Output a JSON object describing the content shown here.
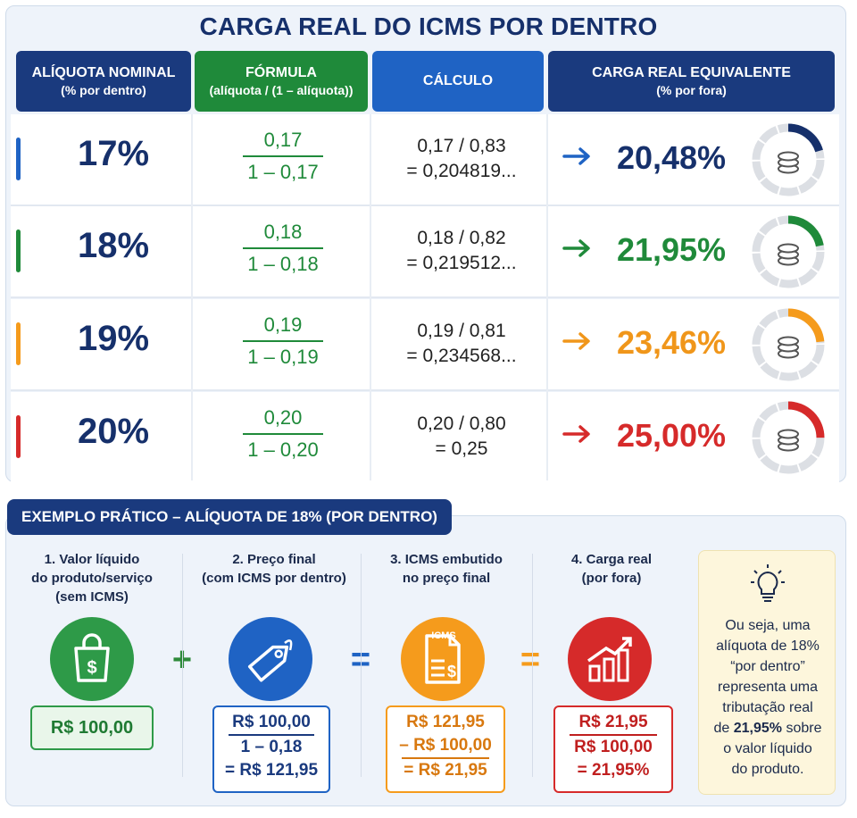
{
  "title": "CARGA REAL DO ICMS POR DENTRO",
  "headers": {
    "col1_line1": "ALÍQUOTA NOMINAL",
    "col1_line2": "(% por dentro)",
    "col2_line1": "FÓRMULA",
    "col2_line2": "(alíquota / (1 – alíquota))",
    "col3": "CÁLCULO",
    "col4_line1": "CARGA REAL EQUIVALENTE",
    "col4_line2": "(% por fora)"
  },
  "rows": [
    {
      "nominal": "17%",
      "frac_num": "0,17",
      "frac_den": "1 – 0,17",
      "calc1": "0,17 / 0,83",
      "calc2": "= 0,204819...",
      "result": "20,48%",
      "color": "#16306b",
      "accent": "#1f63c4",
      "arrow": "→",
      "donut_fraction": 0.2048
    },
    {
      "nominal": "18%",
      "frac_num": "0,18",
      "frac_den": "1 – 0,18",
      "calc1": "0,18 / 0,82",
      "calc2": "= 0,219512...",
      "result": "21,95%",
      "color": "#1f8a3a",
      "accent": "#1f8a3a",
      "arrow": "→",
      "donut_fraction": 0.2195
    },
    {
      "nominal": "19%",
      "frac_num": "0,19",
      "frac_den": "1 – 0,19",
      "calc1": "0,19 / 0,81",
      "calc2": "= 0,234568...",
      "result": "23,46%",
      "color": "#f0961a",
      "accent": "#f59b1c",
      "arrow": "→",
      "donut_fraction": 0.2346
    },
    {
      "nominal": "20%",
      "frac_num": "0,20",
      "frac_den": "1 – 0,20",
      "calc1": "0,20 / 0,80",
      "calc2": "= 0,25",
      "result": "25,00%",
      "color": "#d62a2a",
      "accent": "#d62a2a",
      "arrow": "→",
      "donut_fraction": 0.25
    }
  ],
  "example": {
    "title": "EXEMPLO PRÁTICO – ALÍQUOTA DE 18% (POR DENTRO)",
    "step1": {
      "l1": "1. Valor líquido",
      "l2": "do produto/serviço",
      "l3": "(sem ICMS)",
      "value": "R$ 100,00"
    },
    "step2": {
      "l1": "2. Preço final",
      "l2": "(com ICMS por dentro)",
      "v1": "R$ 100,00",
      "v2": "1 – 0,18",
      "v3": "= R$ 121,95"
    },
    "step3": {
      "l1": "3. ICMS embutido",
      "l2": "no preço final",
      "icon_text": "ICMS",
      "v1": "R$ 121,95",
      "v2": "– R$ 100,00",
      "v3": "= R$ 21,95"
    },
    "step4": {
      "l1": "4. Carga real",
      "l2": "(por fora)",
      "v1": "R$ 21,95",
      "v2": "R$ 100,00",
      "v3": "= 21,95%"
    },
    "op_plus": "+",
    "op_eq": "=",
    "tip": {
      "l1": "Ou seja, uma",
      "l2": "alíquota de 18%",
      "l3": "“por dentro”",
      "l4": "representa uma",
      "l5": "tributação real",
      "l6a": "de ",
      "l6b": "21,95%",
      "l6c": " sobre",
      "l7": "o valor líquido",
      "l8": "do produto."
    }
  }
}
